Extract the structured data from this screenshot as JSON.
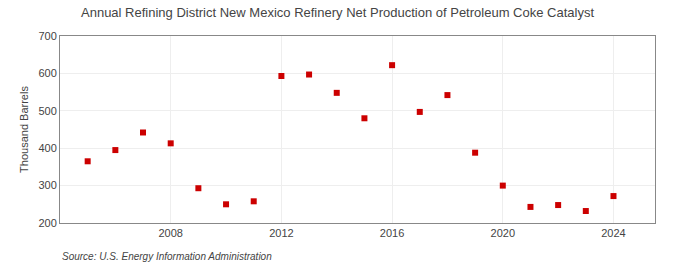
{
  "chart_data": {
    "type": "scatter",
    "title": "Annual Refining District New Mexico Refinery Net Production of Petroleum Coke Catalyst",
    "ylabel": "Thousand Barrels",
    "source": "Source: U.S. Energy Information Administration",
    "x": [
      2005,
      2006,
      2007,
      2008,
      2009,
      2010,
      2011,
      2012,
      2013,
      2014,
      2015,
      2016,
      2017,
      2018,
      2019,
      2020,
      2021,
      2022,
      2023,
      2024
    ],
    "values": [
      365,
      395,
      442,
      413,
      293,
      250,
      258,
      593,
      597,
      548,
      480,
      622,
      497,
      542,
      388,
      300,
      243,
      248,
      232,
      272
    ],
    "color": "#cc0000",
    "marker": "square",
    "xlim": [
      2004,
      2025.5
    ],
    "xticks": [
      2008,
      2012,
      2016,
      2020,
      2024
    ],
    "ylim": [
      200,
      700
    ],
    "yticks": [
      200,
      300,
      400,
      500,
      600,
      700
    ],
    "grid": true
  }
}
